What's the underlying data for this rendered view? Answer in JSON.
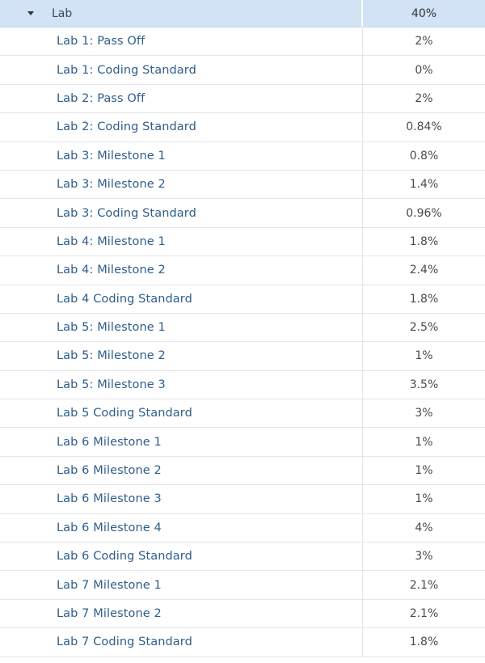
{
  "header": {
    "label": "Lab",
    "percent": "40%"
  },
  "rows": [
    {
      "label": "Lab 1: Pass Off",
      "percent": "2%"
    },
    {
      "label": "Lab 1: Coding Standard",
      "percent": "0%"
    },
    {
      "label": "Lab 2: Pass Off",
      "percent": "2%"
    },
    {
      "label": "Lab 2: Coding Standard",
      "percent": "0.84%"
    },
    {
      "label": "Lab 3: Milestone 1",
      "percent": "0.8%"
    },
    {
      "label": "Lab 3: Milestone 2",
      "percent": "1.4%"
    },
    {
      "label": "Lab 3: Coding Standard",
      "percent": "0.96%"
    },
    {
      "label": "Lab 4: Milestone 1",
      "percent": "1.8%"
    },
    {
      "label": "Lab 4: Milestone 2",
      "percent": "2.4%"
    },
    {
      "label": "Lab 4 Coding Standard",
      "percent": "1.8%"
    },
    {
      "label": "Lab 5: Milestone 1",
      "percent": "2.5%"
    },
    {
      "label": "Lab 5: Milestone 2",
      "percent": "1%"
    },
    {
      "label": "Lab 5: Milestone 3",
      "percent": "3.5%"
    },
    {
      "label": "Lab 5 Coding Standard",
      "percent": "3%"
    },
    {
      "label": "Lab 6 Milestone 1",
      "percent": "1%"
    },
    {
      "label": "Lab 6 Milestone 2",
      "percent": "1%"
    },
    {
      "label": "Lab 6 Milestone 3",
      "percent": "1%"
    },
    {
      "label": "Lab 6 Milestone 4",
      "percent": "4%"
    },
    {
      "label": "Lab 6 Coding Standard",
      "percent": "3%"
    },
    {
      "label": "Lab 7 Milestone 1",
      "percent": "2.1%"
    },
    {
      "label": "Lab 7 Milestone 2",
      "percent": "2.1%"
    },
    {
      "label": "Lab 7 Coding Standard",
      "percent": "1.8%"
    }
  ]
}
